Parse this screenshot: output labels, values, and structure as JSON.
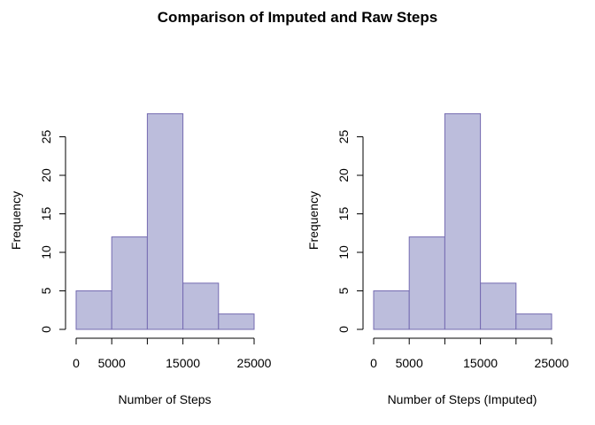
{
  "main_title": "Comparison of Imputed and Raw Steps",
  "colors": {
    "bar_fill": "#bcbddc",
    "bar_stroke": "#756bb1",
    "axis": "#000000"
  },
  "chart_data": [
    {
      "type": "bar",
      "subtype": "histogram",
      "title": "",
      "xlabel": "Number of Steps",
      "ylabel": "Frequency",
      "bins": [
        [
          0,
          5000
        ],
        [
          5000,
          10000
        ],
        [
          10000,
          15000
        ],
        [
          15000,
          20000
        ],
        [
          20000,
          25000
        ]
      ],
      "values": [
        5,
        12,
        28,
        6,
        2
      ],
      "xlim": [
        0,
        25000
      ],
      "ylim": [
        0,
        28
      ],
      "x_ticks": [
        0,
        5000,
        10000,
        15000,
        20000,
        25000
      ],
      "x_tick_labels": [
        "0",
        "5000",
        "",
        "15000",
        "",
        "25000"
      ],
      "y_ticks": [
        0,
        5,
        10,
        15,
        20,
        25
      ],
      "y_tick_labels": [
        "0",
        "5",
        "10",
        "15",
        "20",
        "25"
      ],
      "grid": false,
      "legend": "none"
    },
    {
      "type": "bar",
      "subtype": "histogram",
      "title": "",
      "xlabel": "Number of Steps (Imputed)",
      "ylabel": "Frequency",
      "bins": [
        [
          0,
          5000
        ],
        [
          5000,
          10000
        ],
        [
          10000,
          15000
        ],
        [
          15000,
          20000
        ],
        [
          20000,
          25000
        ]
      ],
      "values": [
        5,
        12,
        28,
        6,
        2
      ],
      "xlim": [
        0,
        25000
      ],
      "ylim": [
        0,
        28
      ],
      "x_ticks": [
        0,
        5000,
        10000,
        15000,
        20000,
        25000
      ],
      "x_tick_labels": [
        "0",
        "5000",
        "",
        "15000",
        "",
        "25000"
      ],
      "y_ticks": [
        0,
        5,
        10,
        15,
        20,
        25
      ],
      "y_tick_labels": [
        "0",
        "5",
        "10",
        "15",
        "20",
        "25"
      ],
      "grid": false,
      "legend": "none"
    }
  ]
}
